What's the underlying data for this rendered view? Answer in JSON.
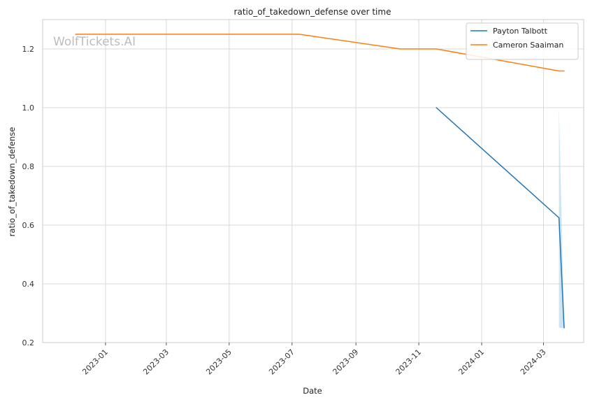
{
  "watermark": "WolfTickets.AI",
  "chart_data": {
    "type": "line",
    "title": "ratio_of_takedown_defense over time",
    "xlabel": "Date",
    "ylabel": "ratio_of_takedown_defense",
    "x_axis_type": "date",
    "xlim": [
      "2022-11-01",
      "2024-04-09"
    ],
    "ylim": [
      0.2,
      1.3
    ],
    "x_ticks": [
      "2023-01-01",
      "2023-03-01",
      "2023-05-01",
      "2023-07-01",
      "2023-09-01",
      "2023-11-01",
      "2024-01-01",
      "2024-03-01"
    ],
    "x_tick_labels": [
      "2023-01",
      "2023-03",
      "2023-05",
      "2023-07",
      "2023-09",
      "2023-11",
      "2024-01",
      "2024-03"
    ],
    "y_ticks": [
      0.2,
      0.4,
      0.6,
      0.8,
      1.0,
      1.2
    ],
    "y_tick_labels": [
      "0.2",
      "0.4",
      "0.6",
      "0.8",
      "1.0",
      "1.2"
    ],
    "grid": true,
    "legend_position": "top-right",
    "series": [
      {
        "name": "Payton Talbott",
        "color": "#1f77b4",
        "points": [
          {
            "x": "2023-11-18",
            "y": 1.0
          },
          {
            "x": "2024-03-16",
            "y": 0.625
          },
          {
            "x": "2024-03-21",
            "y": 0.25
          }
        ],
        "band": [
          {
            "x": "2024-03-16",
            "low": 0.25,
            "high": 1.0
          },
          {
            "x": "2024-03-21",
            "low": 0.25,
            "high": 0.25
          }
        ],
        "band_color": "#a6cde3"
      },
      {
        "name": "Cameron Saaiman",
        "color": "#ff7f0e",
        "points": [
          {
            "x": "2022-12-03",
            "y": 1.25
          },
          {
            "x": "2023-07-08",
            "y": 1.25
          },
          {
            "x": "2023-10-14",
            "y": 1.2
          },
          {
            "x": "2023-11-18",
            "y": 1.2
          },
          {
            "x": "2024-03-16",
            "y": 1.125
          },
          {
            "x": "2024-03-21",
            "y": 1.125
          }
        ]
      }
    ]
  }
}
